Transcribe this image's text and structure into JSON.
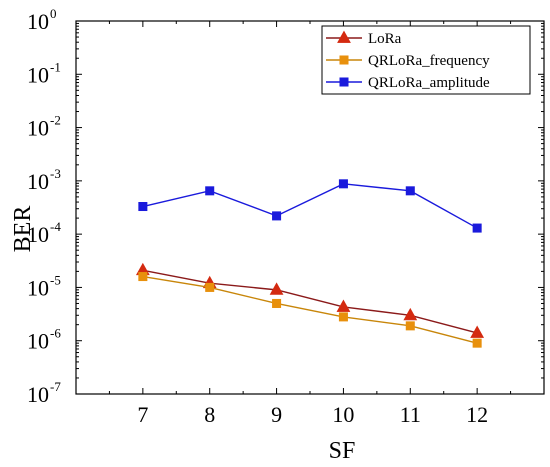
{
  "chart_data": {
    "type": "line",
    "title": "",
    "xlabel": "SF",
    "ylabel": "BER",
    "yscale": "log",
    "xlim": [
      6,
      13
    ],
    "ylim": [
      1e-07,
      1
    ],
    "categories": [
      7,
      8,
      9,
      10,
      11,
      12
    ],
    "x_tick_labels": [
      "7",
      "8",
      "9",
      "10",
      "11",
      "12"
    ],
    "y_tick_labels": [
      {
        "base": "10",
        "exp": "-7",
        "value": 1e-07
      },
      {
        "base": "10",
        "exp": "-6",
        "value": 1e-06
      },
      {
        "base": "10",
        "exp": "-5",
        "value": 1e-05
      },
      {
        "base": "10",
        "exp": "-4",
        "value": 0.0001
      },
      {
        "base": "10",
        "exp": "-3",
        "value": 0.001
      },
      {
        "base": "10",
        "exp": "-2",
        "value": 0.01
      },
      {
        "base": "10",
        "exp": "-1",
        "value": 0.1
      },
      {
        "base": "10",
        "exp": "0",
        "value": 1
      }
    ],
    "legend_position": "top-right",
    "grid": false,
    "series": [
      {
        "name": "LoRa",
        "marker": "triangle",
        "color": "#d42a10",
        "line_color": "#8b1a1a",
        "x": [
          7,
          8,
          9,
          10,
          11,
          12
        ],
        "values": [
          2.1e-05,
          1.2e-05,
          9e-06,
          4.3e-06,
          3e-06,
          1.4e-06
        ]
      },
      {
        "name": "QRLoRa_frequency",
        "marker": "square",
        "color": "#e8900c",
        "line_color": "#c8860a",
        "x": [
          7,
          8,
          9,
          10,
          11,
          12
        ],
        "values": [
          1.6e-05,
          1e-05,
          5e-06,
          2.8e-06,
          1.9e-06,
          9e-07
        ]
      },
      {
        "name": "QRLoRa_amplitude",
        "marker": "square",
        "color": "#1a1adc",
        "line_color": "#1a1adc",
        "x": [
          7,
          8,
          9,
          10,
          11,
          12
        ],
        "values": [
          0.00033,
          0.00065,
          0.00022,
          0.00088,
          0.00065,
          0.00013
        ]
      }
    ]
  }
}
